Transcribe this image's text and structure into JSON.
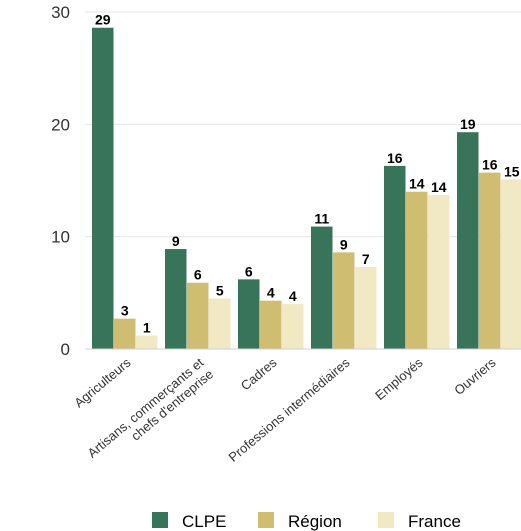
{
  "chart_data": {
    "type": "bar",
    "categories": [
      [
        "Agriculteurs"
      ],
      [
        "Artisans, commerçants et",
        "chefs d'entreprise"
      ],
      [
        "Cadres"
      ],
      [
        "Professions intermédiaires"
      ],
      [
        "Employés"
      ],
      [
        "Ouvriers"
      ]
    ],
    "series": [
      {
        "name": "CLPE",
        "color": "#38745a",
        "values": [
          28.6,
          8.9,
          6.2,
          10.9,
          16.3,
          19.3
        ]
      },
      {
        "name": "Région",
        "color": "#cfbd72",
        "values": [
          2.7,
          5.9,
          4.3,
          8.6,
          14.0,
          15.7
        ]
      },
      {
        "name": "France",
        "color": "#f1e8c4",
        "values": [
          1.2,
          4.5,
          4.0,
          7.3,
          13.7,
          15.1
        ]
      }
    ],
    "data_labels": [
      [
        "29",
        "3",
        "1"
      ],
      [
        "9",
        "6",
        "5"
      ],
      [
        "6",
        "4",
        "4"
      ],
      [
        "11",
        "9",
        "7"
      ],
      [
        "16",
        "14",
        "14"
      ],
      [
        "19",
        "16",
        "15"
      ]
    ],
    "y_ticks": [
      0,
      10,
      20,
      30
    ],
    "ylim": [
      0,
      30
    ],
    "grid": true,
    "legend_position": "bottom",
    "title": "",
    "xlabel": "",
    "ylabel": ""
  }
}
